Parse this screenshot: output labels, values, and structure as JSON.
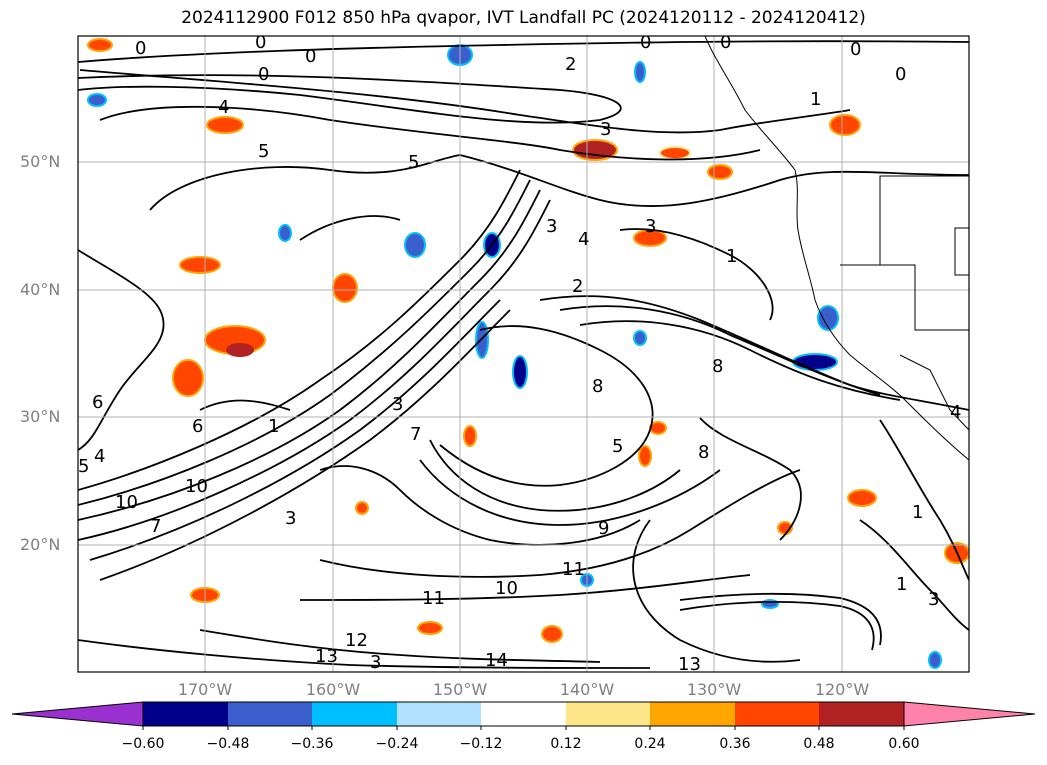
{
  "title": "2024112900 F012 850 hPa qvapor, IVT Landfall PC (2024120112 - 2024120412)",
  "map": {
    "lat_labels": [
      "50°N",
      "40°N",
      "30°N",
      "20°N"
    ],
    "lon_labels": [
      "170°W",
      "160°W",
      "150°W",
      "140°W",
      "130°W",
      "120°W"
    ],
    "contour_labels": [
      "0",
      "0",
      "0",
      "0",
      "0",
      "0",
      "0",
      "0",
      "2",
      "3",
      "1",
      "4",
      "5",
      "5",
      "3",
      "3",
      "4",
      "1",
      "2",
      "3",
      "6",
      "6",
      "7",
      "1",
      "4",
      "5",
      "8",
      "8",
      "5",
      "8",
      "10",
      "10",
      "7",
      "3",
      "9",
      "11",
      "10",
      "11",
      "12",
      "13",
      "14",
      "13",
      "1",
      "4",
      "3",
      "3",
      "1"
    ]
  },
  "colorbar": {
    "ticks": [
      "−0.60",
      "−0.48",
      "−0.36",
      "−0.24",
      "−0.12",
      "0.12",
      "0.24",
      "0.36",
      "0.48",
      "0.60"
    ],
    "colors": [
      "#9b30d0",
      "#00008b",
      "#3a5fcd",
      "#00bfff",
      "#b0e2ff",
      "#ffffff",
      "#fde68a",
      "#ffa500",
      "#ff4500",
      "#b22222",
      "#ff82ab"
    ]
  }
}
